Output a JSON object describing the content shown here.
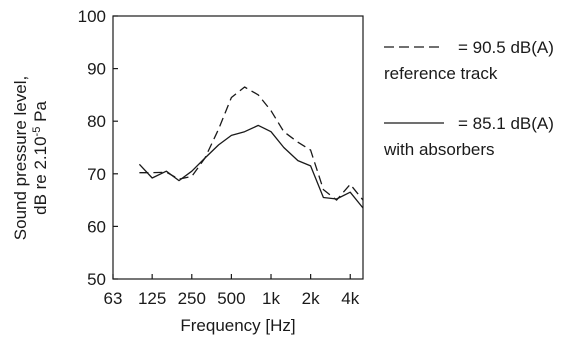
{
  "chart_data": {
    "type": "line",
    "xlabel": "Frequency [Hz]",
    "ylabel_line1": "Sound pressure level,",
    "ylabel_line2_prefix": "dB re 2.10",
    "ylabel_line2_sup": "-5",
    "ylabel_line2_suffix": " Pa",
    "x_scale": "log",
    "x_ticks": [
      {
        "value": 63,
        "label": "63"
      },
      {
        "value": 125,
        "label": "125"
      },
      {
        "value": 250,
        "label": "250"
      },
      {
        "value": 500,
        "label": "500"
      },
      {
        "value": 1000,
        "label": "1k"
      },
      {
        "value": 2000,
        "label": "2k"
      },
      {
        "value": 4000,
        "label": "4k"
      }
    ],
    "xlim": [
      63,
      5000
    ],
    "ylim": [
      50,
      100
    ],
    "y_ticks": [
      50,
      60,
      70,
      80,
      90,
      100
    ],
    "grid": false,
    "legend_position": "right-outside",
    "series": [
      {
        "name": "reference track",
        "legend_value": "= 90.5 dB(A)",
        "style": "dashed",
        "x": [
          100,
          125,
          160,
          200,
          250,
          315,
          400,
          500,
          630,
          800,
          1000,
          1250,
          1600,
          2000,
          2500,
          3150,
          4000,
          5000
        ],
        "y": [
          70.2,
          70.2,
          70.3,
          69.0,
          69.5,
          73.0,
          78.5,
          84.5,
          86.5,
          85.0,
          82.0,
          78.0,
          76.0,
          74.5,
          67.0,
          65.0,
          68.0,
          65.0
        ]
      },
      {
        "name": "with absorbers",
        "legend_value": "= 85.1 dB(A)",
        "style": "solid",
        "x": [
          100,
          125,
          160,
          200,
          250,
          315,
          400,
          500,
          630,
          800,
          1000,
          1250,
          1600,
          2000,
          2500,
          3150,
          4000,
          5000
        ],
        "y": [
          71.8,
          69.2,
          70.5,
          68.7,
          70.5,
          73.0,
          75.5,
          77.3,
          78.0,
          79.2,
          78.0,
          75.0,
          72.5,
          71.5,
          65.5,
          65.2,
          66.5,
          63.5
        ]
      }
    ]
  }
}
